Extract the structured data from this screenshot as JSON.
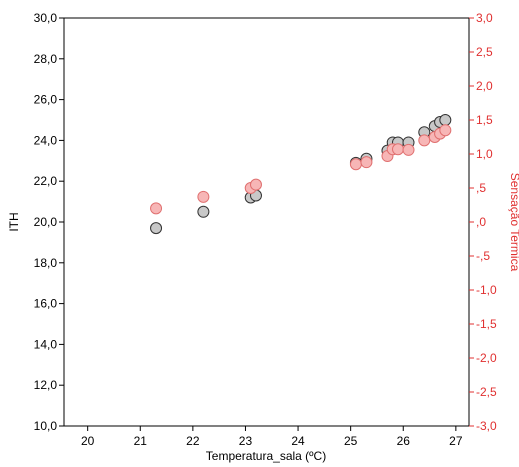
{
  "chart_data": {
    "type": "scatter",
    "xlabel": "Temperatura_sala (ºC)",
    "ylabel": "ITH",
    "y2label": "Sensação Termica",
    "xlim": [
      19.55,
      27.25
    ],
    "ylim": [
      10,
      30
    ],
    "y2lim": [
      -3,
      3
    ],
    "x_ticks": [
      "20",
      "21",
      "22",
      "23",
      "24",
      "25",
      "26",
      "27"
    ],
    "x_tick_values": [
      20,
      21,
      22,
      23,
      24,
      25,
      26,
      27
    ],
    "y_ticks": [
      "10,0",
      "12,0",
      "14,0",
      "16,0",
      "18,0",
      "20,0",
      "22,0",
      "24,0",
      "26,0",
      "28,0",
      "30,0"
    ],
    "y_tick_values": [
      10,
      12,
      14,
      16,
      18,
      20,
      22,
      24,
      26,
      28,
      30
    ],
    "y2_ticks": [
      "-3,0",
      "-2,5",
      "-2,0",
      "-1,5",
      "-1,0",
      "-,5",
      ",0",
      ",5",
      "1,0",
      "1,5",
      "2,0",
      "2,5",
      "3,0"
    ],
    "y2_tick_values": [
      -3,
      -2.5,
      -2,
      -1.5,
      -1,
      -0.5,
      0,
      0.5,
      1,
      1.5,
      2,
      2.5,
      3
    ],
    "grid": false,
    "colors": {
      "series1_fill": "#c8c8c8",
      "series1_stroke": "#333333",
      "series2_fill": "#f7b6b6",
      "series2_stroke": "#e07070",
      "right_axis": "#e03030"
    },
    "series": [
      {
        "axis": "left",
        "x": [
          21.3,
          22.2,
          23.1,
          23.2,
          25.1,
          25.3,
          25.7,
          25.8,
          25.9,
          26.1,
          26.4,
          26.6,
          26.7,
          26.8
        ],
        "y": [
          19.7,
          20.5,
          21.2,
          21.3,
          22.9,
          23.1,
          23.5,
          23.9,
          23.9,
          23.9,
          24.4,
          24.7,
          24.9,
          25.0
        ]
      },
      {
        "axis": "right",
        "x": [
          21.3,
          22.2,
          23.1,
          23.2,
          25.1,
          25.3,
          25.7,
          25.8,
          25.9,
          26.1,
          26.4,
          26.6,
          26.7,
          26.8
        ],
        "y": [
          0.2,
          0.37,
          0.5,
          0.55,
          0.85,
          0.88,
          0.97,
          1.07,
          1.07,
          1.06,
          1.2,
          1.25,
          1.3,
          1.35
        ]
      }
    ]
  }
}
